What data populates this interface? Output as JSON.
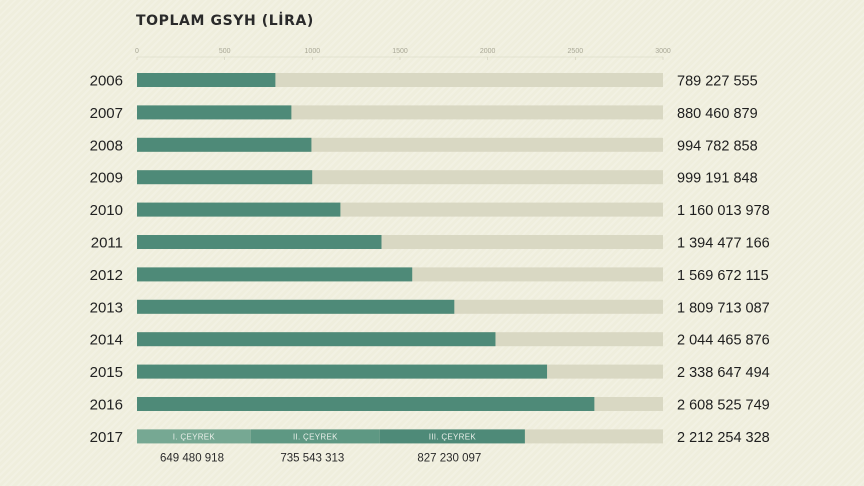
{
  "chart_data": {
    "type": "bar",
    "orientation": "horizontal",
    "title": "TOPLAM GSYH (LİRA)",
    "xlim": [
      0,
      3000
    ],
    "x_ticks": [
      0,
      500,
      1000,
      1500,
      2000,
      2500,
      3000
    ],
    "grid": false,
    "colors": {
      "bar": "#4e8a78",
      "track": "#d9d8c3"
    },
    "categories": [
      "2006",
      "2007",
      "2008",
      "2009",
      "2010",
      "2011",
      "2012",
      "2013",
      "2014",
      "2015",
      "2016",
      "2017"
    ],
    "values": [
      789227555,
      880460879,
      994782858,
      999191848,
      1160013978,
      1394477166,
      1569672115,
      1809713087,
      2044465876,
      2338647494,
      2608525749,
      2212254328
    ],
    "value_labels": [
      "789 227 555",
      "880 460 879",
      "994 782 858",
      "999 191 848",
      "1 160 013 978",
      "1 394 477 166",
      "1 569 672 115",
      "1 809 713 087",
      "2 044 465 876",
      "2 338 647 494",
      "2 608 525 749",
      "2 212 254 328"
    ],
    "stacked_2017": {
      "segments": [
        {
          "label": "I. ÇEYREK",
          "value": 649480918,
          "value_label": "649 480 918",
          "color": "#76a893"
        },
        {
          "label": "II. ÇEYREK",
          "value": 735543313,
          "value_label": "735 543 313",
          "color": "#5e9883"
        },
        {
          "label": "III. ÇEYREK",
          "value": 827230097,
          "value_label": "827 230 097",
          "color": "#4e8a78"
        }
      ]
    }
  }
}
